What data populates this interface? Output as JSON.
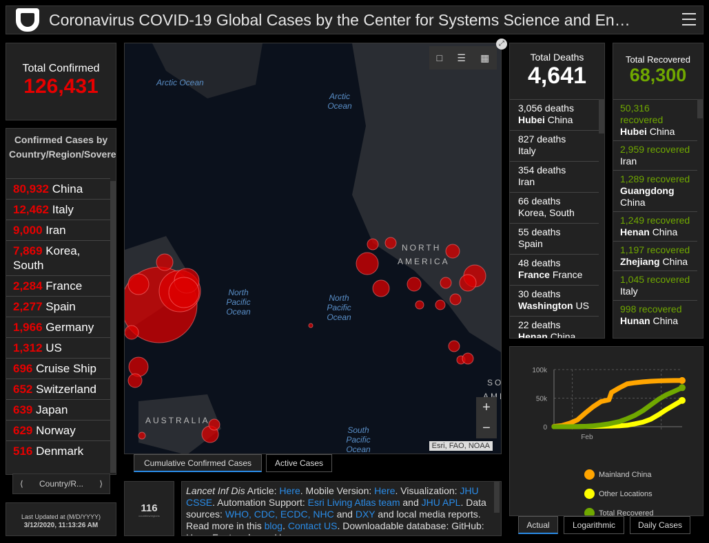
{
  "header": {
    "title": "Coronavirus COVID-19 Global Cases by the Center for Systems Science and En…"
  },
  "confirmed": {
    "label": "Total Confirmed",
    "value": "126,431"
  },
  "countries": {
    "header": "Confirmed Cases by Country/Region/Sovereignty",
    "items": [
      {
        "n": "80,932",
        "c": "China"
      },
      {
        "n": "12,462",
        "c": "Italy"
      },
      {
        "n": "9,000",
        "c": "Iran"
      },
      {
        "n": "7,869",
        "c": "Korea, South"
      },
      {
        "n": "2,284",
        "c": "France"
      },
      {
        "n": "2,277",
        "c": "Spain"
      },
      {
        "n": "1,966",
        "c": "Germany"
      },
      {
        "n": "1,312",
        "c": "US"
      },
      {
        "n": "696",
        "c": "Cruise Ship"
      },
      {
        "n": "652",
        "c": "Switzerland"
      },
      {
        "n": "639",
        "c": "Japan"
      },
      {
        "n": "629",
        "c": "Norway"
      },
      {
        "n": "516",
        "c": "Denmark"
      }
    ]
  },
  "pager": {
    "label": "Country/R..."
  },
  "updated": {
    "label": "Last Updated at (M/D/YYYY)",
    "value": "3/12/2020, 11:13:26 AM"
  },
  "map": {
    "labels": [
      "Arctic Ocean",
      "Arctic Ocean",
      "North Pacific Ocean",
      "North Pacific Ocean",
      "South Pacific Ocean"
    ],
    "land": [
      "NORTH",
      "AMERICA",
      "AUSTRALIA",
      "SO",
      "AME"
    ],
    "attribution": "Esri, FAO, NOAA",
    "zoom_in": "+",
    "zoom_out": "−"
  },
  "map_tabs": [
    "Cumulative Confirmed Cases",
    "Active Cases"
  ],
  "counter": {
    "value": "116",
    "sub": "countries/regions"
  },
  "info": {
    "p1": "Lancet Inf Dis",
    "p2": " Article: ",
    "l1": "Here",
    "p3": ". Mobile Version: ",
    "l2": "Here",
    "p4": ". Visualization: ",
    "l3": "JHU CSSE",
    "p5": ". Automation Support: ",
    "l4": "Esri Living Atlas team",
    "p6": " and ",
    "l5": "JHU APL",
    "p7": ". Data sources: ",
    "l6": "WHO, CDC, ECDC, NHC",
    "p8": " and ",
    "l7": "DXY",
    "p9": " and local media reports. Read more in this ",
    "l8": "blog",
    "p10": ". ",
    "l9": "Contact US",
    "p11": ". Downloadable database: GitHub: Here. Feature layer: Here."
  },
  "deaths": {
    "label": "Total Deaths",
    "value": "4,641",
    "items": [
      {
        "n": "3,056 deaths",
        "p": "Hubei",
        "c": "China"
      },
      {
        "n": "827 deaths",
        "p": "",
        "c": "Italy"
      },
      {
        "n": "354 deaths",
        "p": "",
        "c": "Iran"
      },
      {
        "n": "66 deaths",
        "p": "",
        "c": "Korea, South"
      },
      {
        "n": "55 deaths",
        "p": "",
        "c": "Spain"
      },
      {
        "n": "48 deaths",
        "p": "France",
        "c": "France"
      },
      {
        "n": "30 deaths",
        "p": "Washington",
        "c": "US"
      },
      {
        "n": "22 deaths",
        "p": "Henan",
        "c": "China"
      }
    ]
  },
  "recovered": {
    "label": "Total Recovered",
    "value": "68,300",
    "items": [
      {
        "n": "50,316 recovered",
        "p": "Hubei",
        "c": "China"
      },
      {
        "n": "2,959 recovered",
        "p": "",
        "c": "Iran"
      },
      {
        "n": "1,289 recovered",
        "p": "Guangdong",
        "c": "China"
      },
      {
        "n": "1,249 recovered",
        "p": "Henan",
        "c": "China"
      },
      {
        "n": "1,197 recovered",
        "p": "Zhejiang",
        "c": "China"
      },
      {
        "n": "1,045 recovered",
        "p": "",
        "c": "Italy"
      },
      {
        "n": "998 recovered",
        "p": "Hunan",
        "c": "China"
      }
    ]
  },
  "chart_tabs": [
    "Actual",
    "Logarithmic",
    "Daily Cases"
  ],
  "chart_data": {
    "type": "line",
    "x": [
      0,
      3,
      6,
      9,
      12,
      15,
      18,
      21,
      22,
      25,
      28,
      31,
      34,
      37,
      40,
      43,
      46,
      49
    ],
    "x_ticks": [
      {
        "x": 10,
        "label": "Feb"
      }
    ],
    "y_ticks": [
      "0",
      "50k",
      "100k"
    ],
    "ylim": [
      0,
      100000
    ],
    "series": [
      {
        "name": "Mainland China",
        "color": "#ffa500",
        "values": [
          550,
          2000,
          6000,
          12000,
          24000,
          35000,
          44000,
          47000,
          60000,
          68000,
          75000,
          77000,
          78500,
          79500,
          80200,
          80600,
          80800,
          80900
        ]
      },
      {
        "name": "Other Locations",
        "color": "#ffff00",
        "values": [
          10,
          50,
          100,
          200,
          400,
          600,
          800,
          1000,
          1100,
          1500,
          2500,
          5000,
          8000,
          13000,
          21000,
          30000,
          38000,
          46000
        ]
      },
      {
        "name": "Total Recovered",
        "color": "#70a800",
        "values": [
          30,
          40,
          80,
          200,
          600,
          1500,
          3000,
          5000,
          6000,
          9000,
          14000,
          20000,
          28000,
          38000,
          48000,
          56000,
          62000,
          68300
        ]
      }
    ]
  }
}
